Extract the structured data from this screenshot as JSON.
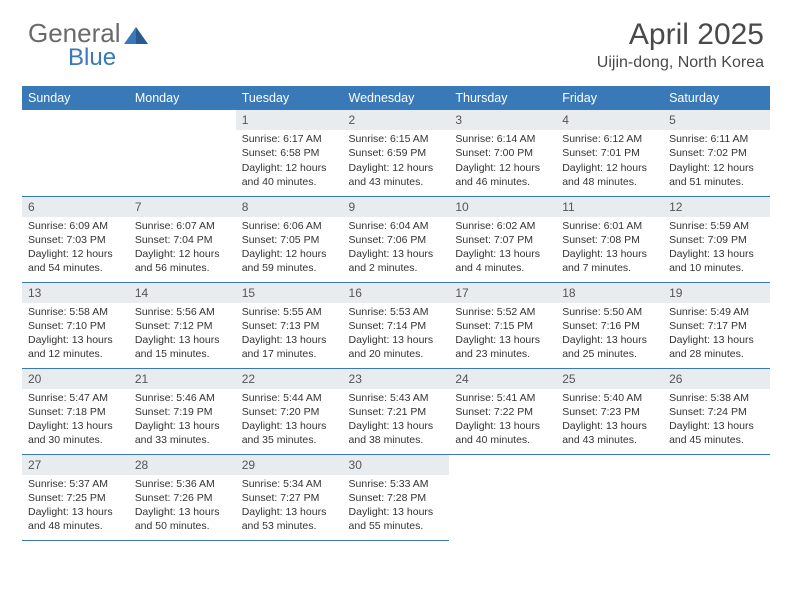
{
  "brand": {
    "name_a": "General",
    "name_b": "Blue"
  },
  "title": "April 2025",
  "location": "Uijin-dong, North Korea",
  "weekdays": [
    "Sunday",
    "Monday",
    "Tuesday",
    "Wednesday",
    "Thursday",
    "Friday",
    "Saturday"
  ],
  "colors": {
    "header_bg": "#3a79b7",
    "header_fg": "#ffffff",
    "daynum_bg": "#e9ecef",
    "text": "#333333",
    "border": "#3a79b7",
    "brand_gray": "#6a6a6a",
    "brand_blue": "#3a79b7"
  },
  "fonts": {
    "title_size_pt": 22,
    "location_size_pt": 12,
    "weekday_size_pt": 9,
    "cell_size_pt": 8
  },
  "grid": {
    "first_weekday_index": 2,
    "rows": 5,
    "cols": 7
  },
  "days": [
    {
      "n": 1,
      "sunrise": "6:17 AM",
      "sunset": "6:58 PM",
      "daylight": "12 hours and 40 minutes."
    },
    {
      "n": 2,
      "sunrise": "6:15 AM",
      "sunset": "6:59 PM",
      "daylight": "12 hours and 43 minutes."
    },
    {
      "n": 3,
      "sunrise": "6:14 AM",
      "sunset": "7:00 PM",
      "daylight": "12 hours and 46 minutes."
    },
    {
      "n": 4,
      "sunrise": "6:12 AM",
      "sunset": "7:01 PM",
      "daylight": "12 hours and 48 minutes."
    },
    {
      "n": 5,
      "sunrise": "6:11 AM",
      "sunset": "7:02 PM",
      "daylight": "12 hours and 51 minutes."
    },
    {
      "n": 6,
      "sunrise": "6:09 AM",
      "sunset": "7:03 PM",
      "daylight": "12 hours and 54 minutes."
    },
    {
      "n": 7,
      "sunrise": "6:07 AM",
      "sunset": "7:04 PM",
      "daylight": "12 hours and 56 minutes."
    },
    {
      "n": 8,
      "sunrise": "6:06 AM",
      "sunset": "7:05 PM",
      "daylight": "12 hours and 59 minutes."
    },
    {
      "n": 9,
      "sunrise": "6:04 AM",
      "sunset": "7:06 PM",
      "daylight": "13 hours and 2 minutes."
    },
    {
      "n": 10,
      "sunrise": "6:02 AM",
      "sunset": "7:07 PM",
      "daylight": "13 hours and 4 minutes."
    },
    {
      "n": 11,
      "sunrise": "6:01 AM",
      "sunset": "7:08 PM",
      "daylight": "13 hours and 7 minutes."
    },
    {
      "n": 12,
      "sunrise": "5:59 AM",
      "sunset": "7:09 PM",
      "daylight": "13 hours and 10 minutes."
    },
    {
      "n": 13,
      "sunrise": "5:58 AM",
      "sunset": "7:10 PM",
      "daylight": "13 hours and 12 minutes."
    },
    {
      "n": 14,
      "sunrise": "5:56 AM",
      "sunset": "7:12 PM",
      "daylight": "13 hours and 15 minutes."
    },
    {
      "n": 15,
      "sunrise": "5:55 AM",
      "sunset": "7:13 PM",
      "daylight": "13 hours and 17 minutes."
    },
    {
      "n": 16,
      "sunrise": "5:53 AM",
      "sunset": "7:14 PM",
      "daylight": "13 hours and 20 minutes."
    },
    {
      "n": 17,
      "sunrise": "5:52 AM",
      "sunset": "7:15 PM",
      "daylight": "13 hours and 23 minutes."
    },
    {
      "n": 18,
      "sunrise": "5:50 AM",
      "sunset": "7:16 PM",
      "daylight": "13 hours and 25 minutes."
    },
    {
      "n": 19,
      "sunrise": "5:49 AM",
      "sunset": "7:17 PM",
      "daylight": "13 hours and 28 minutes."
    },
    {
      "n": 20,
      "sunrise": "5:47 AM",
      "sunset": "7:18 PM",
      "daylight": "13 hours and 30 minutes."
    },
    {
      "n": 21,
      "sunrise": "5:46 AM",
      "sunset": "7:19 PM",
      "daylight": "13 hours and 33 minutes."
    },
    {
      "n": 22,
      "sunrise": "5:44 AM",
      "sunset": "7:20 PM",
      "daylight": "13 hours and 35 minutes."
    },
    {
      "n": 23,
      "sunrise": "5:43 AM",
      "sunset": "7:21 PM",
      "daylight": "13 hours and 38 minutes."
    },
    {
      "n": 24,
      "sunrise": "5:41 AM",
      "sunset": "7:22 PM",
      "daylight": "13 hours and 40 minutes."
    },
    {
      "n": 25,
      "sunrise": "5:40 AM",
      "sunset": "7:23 PM",
      "daylight": "13 hours and 43 minutes."
    },
    {
      "n": 26,
      "sunrise": "5:38 AM",
      "sunset": "7:24 PM",
      "daylight": "13 hours and 45 minutes."
    },
    {
      "n": 27,
      "sunrise": "5:37 AM",
      "sunset": "7:25 PM",
      "daylight": "13 hours and 48 minutes."
    },
    {
      "n": 28,
      "sunrise": "5:36 AM",
      "sunset": "7:26 PM",
      "daylight": "13 hours and 50 minutes."
    },
    {
      "n": 29,
      "sunrise": "5:34 AM",
      "sunset": "7:27 PM",
      "daylight": "13 hours and 53 minutes."
    },
    {
      "n": 30,
      "sunrise": "5:33 AM",
      "sunset": "7:28 PM",
      "daylight": "13 hours and 55 minutes."
    }
  ],
  "labels": {
    "sunrise": "Sunrise:",
    "sunset": "Sunset:",
    "daylight": "Daylight:"
  }
}
